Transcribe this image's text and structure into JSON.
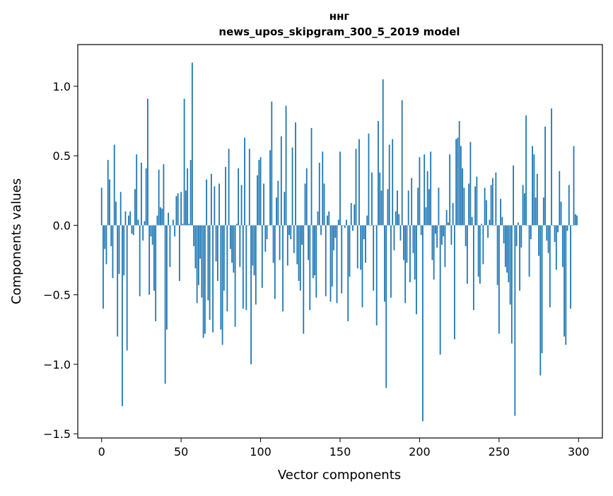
{
  "chart_data": {
    "type": "bar",
    "title_lines": [
      "ннг",
      "news_upos_skipgram_300_5_2019 model"
    ],
    "xlabel": "Vector components",
    "ylabel": "Components values",
    "xlim": [
      -15,
      315
    ],
    "ylim": [
      -1.53,
      1.3
    ],
    "xticks": [
      0,
      50,
      100,
      150,
      200,
      250,
      300
    ],
    "xtick_labels": [
      "0",
      "50",
      "100",
      "150",
      "200",
      "250",
      "300"
    ],
    "yticks": [
      -1.5,
      -1.0,
      -0.5,
      0.0,
      0.5,
      1.0
    ],
    "ytick_labels": [
      "−1.5",
      "−1.0",
      "−0.5",
      "0.0",
      "0.5",
      "1.0"
    ],
    "grid": false,
    "bar_color": "#1f77b4",
    "x_start": 0,
    "values": [
      0.27,
      -0.6,
      -0.17,
      -0.28,
      0.47,
      0.33,
      -0.15,
      -0.38,
      0.58,
      0.17,
      -0.8,
      -0.35,
      0.24,
      -1.3,
      -0.36,
      0.1,
      -0.9,
      0.07,
      0.1,
      -0.06,
      -0.07,
      0.26,
      0.51,
      0.04,
      -0.51,
      0.45,
      -0.11,
      0.03,
      0.41,
      0.91,
      -0.5,
      -0.08,
      -0.14,
      -0.47,
      -0.69,
      0.07,
      0.4,
      0.13,
      0.12,
      0.44,
      -1.14,
      -0.75,
      0.09,
      -0.3,
      0.0,
      0.04,
      -0.08,
      0.21,
      0.23,
      -0.4,
      0.24,
      0.01,
      0.91,
      0.25,
      0.41,
      0.01,
      0.47,
      1.17,
      -0.15,
      -0.31,
      -0.56,
      -0.43,
      -0.24,
      -0.52,
      -0.81,
      -0.78,
      0.33,
      -0.54,
      -0.68,
      0.37,
      -0.77,
      0.28,
      -0.26,
      -0.4,
      0.3,
      -0.75,
      -0.86,
      -0.47,
      0.42,
      -0.62,
      0.55,
      -0.17,
      -0.27,
      -0.34,
      -0.73,
      0.01,
      0.41,
      -0.3,
      0.29,
      -0.6,
      0.63,
      -0.61,
      0.0,
      0.55,
      -1.0,
      -0.29,
      -0.36,
      -0.57,
      0.36,
      0.47,
      0.49,
      -0.45,
      0.3,
      -0.19,
      -0.1,
      0.0,
      0.54,
      0.89,
      -0.27,
      -0.53,
      0.2,
      0.32,
      -0.25,
      0.64,
      -0.62,
      0.24,
      0.86,
      -0.29,
      -0.07,
      -0.1,
      0.56,
      -0.2,
      0.74,
      -0.28,
      -0.4,
      -0.47,
      -0.14,
      -0.78,
      0.3,
      0.41,
      -0.25,
      -0.61,
      0.7,
      -0.38,
      -0.36,
      -0.52,
      0.1,
      0.45,
      -0.07,
      0.53,
      0.3,
      -0.51,
      0.07,
      0.1,
      -0.55,
      -0.44,
      -0.18,
      -0.09,
      -0.56,
      0.04,
      0.53,
      -0.49,
      0.0,
      -0.02,
      0.04,
      -0.69,
      -0.37,
      0.16,
      -0.04,
      0.15,
      0.55,
      -0.31,
      0.62,
      -0.32,
      -0.59,
      -0.1,
      -0.27,
      0.07,
      0.66,
      0.0,
      0.38,
      -0.47,
      0.0,
      -0.72,
      0.75,
      0.38,
      0.25,
      1.05,
      -0.55,
      -1.17,
      0.26,
      0.58,
      -0.52,
      0.62,
      -0.18,
      0.1,
      0.25,
      0.08,
      -0.11,
      0.9,
      -0.25,
      -0.56,
      -0.27,
      0.25,
      -0.41,
      0.34,
      -0.2,
      -0.39,
      -0.64,
      0.27,
      0.49,
      -0.07,
      -1.41,
      0.51,
      0.13,
      0.39,
      0.26,
      0.53,
      -0.25,
      -0.39,
      -0.06,
      -0.16,
      0.27,
      -0.93,
      -0.14,
      -0.08,
      -0.3,
      0.11,
      0.02,
      0.51,
      -0.14,
      0.16,
      -0.82,
      0.62,
      0.63,
      0.75,
      0.57,
      0.41,
      0.27,
      -0.15,
      -0.42,
      0.3,
      0.6,
      0.06,
      -0.61,
      0.28,
      0.35,
      -0.37,
      -0.42,
      0.01,
      -0.28,
      0.27,
      0.18,
      -0.09,
      0.04,
      0.29,
      0.34,
      0.0,
      0.38,
      -0.43,
      -0.78,
      0.19,
      0.06,
      -0.13,
      -0.3,
      -0.34,
      -0.41,
      -0.57,
      -0.85,
      0.43,
      -1.37,
      -0.15,
      0.02,
      -0.47,
      -0.16,
      0.29,
      0.23,
      0.79,
      0.0,
      -0.37,
      -0.1,
      0.57,
      0.51,
      0.2,
      0.37,
      -0.22,
      -1.08,
      -0.92,
      0.2,
      0.71,
      -0.11,
      -0.2,
      -0.59,
      0.84,
      0.0,
      -0.12,
      -0.32,
      -0.05,
      0.39,
      0.17,
      -0.3,
      -0.8,
      -0.86,
      -0.04,
      0.29,
      -0.6,
      0.0,
      0.57,
      0.08,
      0.07
    ]
  }
}
